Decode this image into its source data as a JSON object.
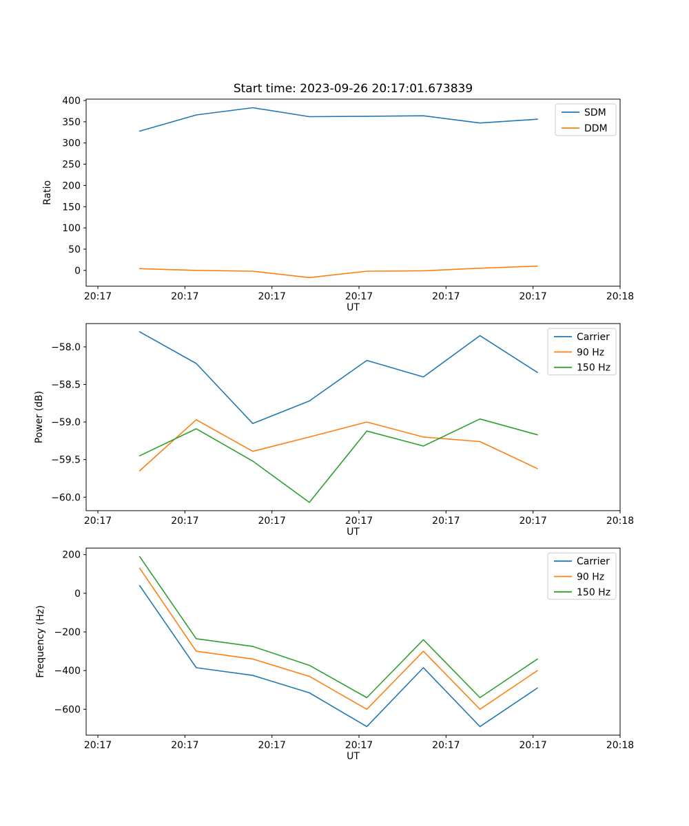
{
  "figure": {
    "title": "Start time: 2023-09-26 20:17:01.673839",
    "background": "#ffffff",
    "colors": {
      "blue": "#1f77b4",
      "orange": "#ff7f0e",
      "green": "#2ca02c",
      "legend_edge": "#cccccc"
    }
  },
  "chart_data": [
    {
      "type": "line",
      "title": "Start time: 2023-09-26 20:17:01.673839",
      "xlabel": "UT",
      "ylabel": "Ratio",
      "x_tick_labels": [
        "20:17",
        "20:17",
        "20:17",
        "20:17",
        "20:17",
        "20:17",
        "20:18"
      ],
      "x_tick_seconds": [
        0,
        10,
        20,
        30,
        40,
        50,
        60
      ],
      "xlim": [
        -1.35,
        60
      ],
      "x_seconds": [
        4.8,
        11.3,
        17.8,
        24.3,
        30.9,
        37.4,
        43.9,
        50.5
      ],
      "ylim": [
        -37.3,
        403.3
      ],
      "y_ticks": [
        0,
        50,
        100,
        150,
        200,
        250,
        300,
        350,
        400
      ],
      "y_tick_labels": [
        "0",
        "50",
        "100",
        "150",
        "200",
        "250",
        "300",
        "350",
        "400"
      ],
      "legend_position": "upper right",
      "grid": false,
      "series": [
        {
          "name": "SDM",
          "color": "#1f77b4",
          "values": [
            328,
            366,
            383,
            362,
            363,
            364,
            347,
            356
          ]
        },
        {
          "name": "DDM",
          "color": "#ff7f0e",
          "values": [
            4,
            0,
            -2,
            -17,
            -2,
            -1,
            5,
            10
          ]
        }
      ]
    },
    {
      "type": "line",
      "title": "",
      "xlabel": "UT",
      "ylabel": "Power (dB)",
      "x_tick_labels": [
        "20:17",
        "20:17",
        "20:17",
        "20:17",
        "20:17",
        "20:17",
        "20:18"
      ],
      "x_tick_seconds": [
        0,
        10,
        20,
        30,
        40,
        50,
        60
      ],
      "xlim": [
        -1.35,
        60
      ],
      "x_seconds": [
        4.8,
        11.3,
        17.8,
        24.3,
        30.9,
        37.4,
        43.9,
        50.5
      ],
      "ylim": [
        -60.18,
        -57.69
      ],
      "y_ticks": [
        -60.0,
        -59.5,
        -59.0,
        -58.5,
        -58.0
      ],
      "y_tick_labels": [
        "−60.0",
        "−59.5",
        "−59.0",
        "−58.5",
        "−58.0"
      ],
      "legend_position": "upper right",
      "grid": false,
      "series": [
        {
          "name": "Carrier",
          "color": "#1f77b4",
          "values": [
            -57.8,
            -58.22,
            -59.02,
            -58.72,
            -58.18,
            -58.4,
            -57.85,
            -58.34
          ]
        },
        {
          "name": "90 Hz",
          "color": "#ff7f0e",
          "values": [
            -59.65,
            -58.97,
            -59.39,
            -59.2,
            -59.0,
            -59.2,
            -59.26,
            -59.62
          ]
        },
        {
          "name": "150 Hz",
          "color": "#2ca02c",
          "values": [
            -59.45,
            -59.09,
            -59.52,
            -60.07,
            -59.12,
            -59.32,
            -58.96,
            -59.17
          ]
        }
      ]
    },
    {
      "type": "line",
      "title": "",
      "xlabel": "UT",
      "ylabel": "Frequency (Hz)",
      "x_tick_labels": [
        "20:17",
        "20:17",
        "20:17",
        "20:17",
        "20:17",
        "20:17",
        "20:18"
      ],
      "x_tick_seconds": [
        0,
        10,
        20,
        30,
        40,
        50,
        60
      ],
      "xlim": [
        -1.35,
        60
      ],
      "x_seconds": [
        4.8,
        11.3,
        17.8,
        24.3,
        30.9,
        37.4,
        43.9,
        50.5
      ],
      "ylim": [
        -734,
        234
      ],
      "y_ticks": [
        -600,
        -400,
        -200,
        0,
        200
      ],
      "y_tick_labels": [
        "−600",
        "−400",
        "−200",
        "0",
        "200"
      ],
      "legend_position": "upper right",
      "grid": false,
      "series": [
        {
          "name": "Carrier",
          "color": "#1f77b4",
          "values": [
            40,
            -385,
            -425,
            -515,
            -690,
            -385,
            -690,
            -490
          ]
        },
        {
          "name": "90 Hz",
          "color": "#ff7f0e",
          "values": [
            130,
            -300,
            -340,
            -430,
            -600,
            -300,
            -600,
            -400
          ]
        },
        {
          "name": "150 Hz",
          "color": "#2ca02c",
          "values": [
            190,
            -235,
            -275,
            -373,
            -540,
            -240,
            -540,
            -340
          ]
        }
      ]
    }
  ]
}
